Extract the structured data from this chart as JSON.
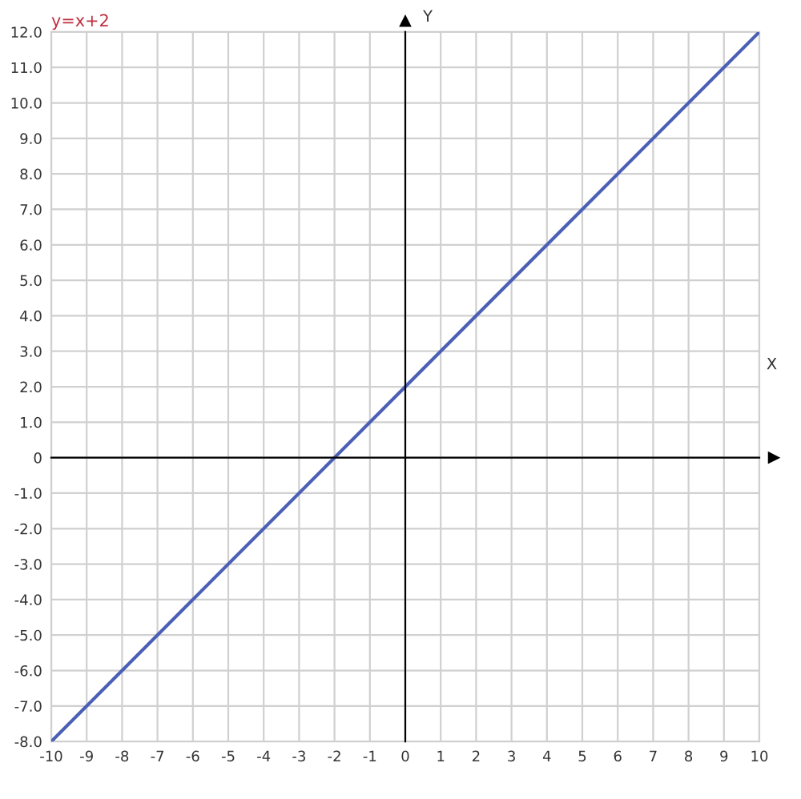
{
  "chart_data": {
    "type": "line",
    "title": "y=x+2",
    "xlabel": "X",
    "ylabel": "Y",
    "x": [
      -10,
      10
    ],
    "series": [
      {
        "color": "#4a5fb5",
        "values": [
          -8,
          12
        ]
      }
    ],
    "xlim": [
      -10,
      10
    ],
    "ylim": [
      -8,
      12
    ],
    "xticks": [
      -10,
      -9,
      -8,
      -7,
      -6,
      -5,
      -4,
      -3,
      -2,
      -1,
      0,
      1,
      2,
      3,
      4,
      5,
      6,
      7,
      8,
      9,
      10
    ],
    "yticks": [
      {
        "value": 12,
        "label": "12.0"
      },
      {
        "value": 11,
        "label": "11.0"
      },
      {
        "value": 10,
        "label": "10.0"
      },
      {
        "value": 9,
        "label": "9.0"
      },
      {
        "value": 8,
        "label": "8.0"
      },
      {
        "value": 7,
        "label": "7.0"
      },
      {
        "value": 6,
        "label": "6.0"
      },
      {
        "value": 5,
        "label": "5.0"
      },
      {
        "value": 4,
        "label": "4.0"
      },
      {
        "value": 3,
        "label": "3.0"
      },
      {
        "value": 2,
        "label": "2.0"
      },
      {
        "value": 1,
        "label": "1.0"
      },
      0,
      {
        "value": -1,
        "label": "-1.0"
      },
      {
        "value": -2,
        "label": "-2.0"
      },
      {
        "value": -3,
        "label": "-3.0"
      },
      {
        "value": -4,
        "label": "-4.0"
      },
      {
        "value": -5,
        "label": "-5.0"
      },
      {
        "value": -6,
        "label": "-6.0"
      },
      {
        "value": -7,
        "label": "-7.0"
      },
      {
        "value": -8,
        "label": "-8.0"
      }
    ],
    "grid": true
  }
}
